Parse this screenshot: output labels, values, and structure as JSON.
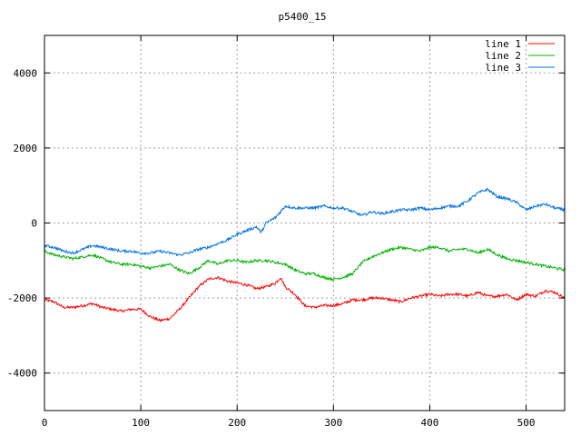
{
  "chart_data": {
    "type": "line",
    "title": "p5400_15",
    "xlabel": "",
    "ylabel": "",
    "xlim": [
      0,
      540
    ],
    "ylim": [
      -5000,
      5000
    ],
    "x_ticks": [
      0,
      100,
      200,
      300,
      400,
      500
    ],
    "y_ticks": [
      -4000,
      -2000,
      0,
      2000,
      4000
    ],
    "grid": true,
    "legend_position": "top-right",
    "series": [
      {
        "name": "line 1",
        "color": "#ff0000",
        "x": [
          0,
          10,
          20,
          30,
          40,
          50,
          60,
          70,
          80,
          90,
          100,
          110,
          120,
          130,
          140,
          150,
          160,
          170,
          180,
          190,
          200,
          210,
          220,
          230,
          240,
          245,
          250,
          260,
          270,
          280,
          290,
          300,
          310,
          320,
          330,
          340,
          350,
          360,
          370,
          380,
          390,
          400,
          410,
          420,
          430,
          440,
          450,
          460,
          470,
          480,
          490,
          500,
          510,
          520,
          530,
          540
        ],
        "values": [
          -2050,
          -2100,
          -2250,
          -2250,
          -2200,
          -2150,
          -2250,
          -2300,
          -2350,
          -2300,
          -2300,
          -2500,
          -2600,
          -2550,
          -2300,
          -2000,
          -1700,
          -1500,
          -1450,
          -1550,
          -1600,
          -1650,
          -1750,
          -1700,
          -1600,
          -1450,
          -1700,
          -1900,
          -2200,
          -2250,
          -2200,
          -2200,
          -2150,
          -2050,
          -2050,
          -2000,
          -2000,
          -2050,
          -2100,
          -2000,
          -1950,
          -1900,
          -1950,
          -1900,
          -1900,
          -1950,
          -1850,
          -1950,
          -1950,
          -1900,
          -2050,
          -1900,
          -1950,
          -1800,
          -1850,
          -2000
        ]
      },
      {
        "name": "line 2",
        "color": "#00b000",
        "x": [
          0,
          10,
          20,
          30,
          40,
          50,
          60,
          70,
          80,
          90,
          100,
          110,
          120,
          130,
          140,
          150,
          160,
          170,
          180,
          190,
          200,
          210,
          220,
          230,
          240,
          250,
          260,
          270,
          280,
          290,
          300,
          310,
          320,
          330,
          340,
          350,
          360,
          370,
          380,
          390,
          400,
          410,
          420,
          430,
          440,
          450,
          460,
          470,
          480,
          490,
          500,
          510,
          520,
          530,
          540
        ],
        "values": [
          -750,
          -850,
          -900,
          -950,
          -900,
          -850,
          -950,
          -1050,
          -1100,
          -1100,
          -1150,
          -1200,
          -1150,
          -1100,
          -1250,
          -1350,
          -1200,
          -1000,
          -1100,
          -1000,
          -1000,
          -1050,
          -1000,
          -1000,
          -1050,
          -1100,
          -1250,
          -1350,
          -1350,
          -1450,
          -1500,
          -1450,
          -1350,
          -1050,
          -900,
          -800,
          -700,
          -650,
          -700,
          -750,
          -650,
          -650,
          -750,
          -700,
          -700,
          -800,
          -700,
          -850,
          -950,
          -1000,
          -1050,
          -1100,
          -1150,
          -1200,
          -1250
        ]
      },
      {
        "name": "line 3",
        "color": "#0070e0",
        "x": [
          0,
          10,
          20,
          30,
          40,
          50,
          60,
          70,
          80,
          90,
          100,
          110,
          120,
          130,
          140,
          150,
          160,
          170,
          180,
          190,
          200,
          210,
          220,
          225,
          230,
          240,
          245,
          250,
          260,
          270,
          280,
          290,
          300,
          310,
          320,
          330,
          340,
          350,
          360,
          370,
          380,
          390,
          400,
          410,
          420,
          430,
          440,
          450,
          460,
          470,
          480,
          490,
          500,
          510,
          520,
          530,
          540
        ],
        "values": [
          -600,
          -650,
          -750,
          -800,
          -700,
          -600,
          -650,
          -700,
          -750,
          -750,
          -800,
          -800,
          -750,
          -800,
          -850,
          -800,
          -700,
          -650,
          -550,
          -450,
          -300,
          -200,
          -100,
          -250,
          0,
          150,
          300,
          450,
          400,
          400,
          400,
          450,
          400,
          400,
          300,
          200,
          300,
          250,
          300,
          350,
          350,
          400,
          350,
          400,
          450,
          450,
          600,
          800,
          900,
          700,
          650,
          550,
          350,
          450,
          500,
          400,
          350
        ]
      }
    ]
  }
}
